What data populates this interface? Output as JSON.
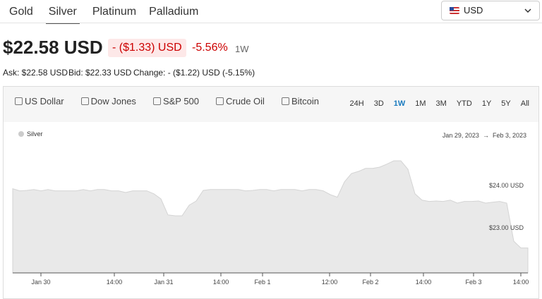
{
  "tabs": [
    "Gold",
    "Silver",
    "Platinum",
    "Palladium"
  ],
  "currency": "USD",
  "price": "$22.58 USD",
  "change": "- ($1.33) USD",
  "change_pct": "-5.56%",
  "period": "1W",
  "ask": "Ask: $22.58 USD",
  "bid": "Bid: $22.33 USD",
  "day_change": "Change: - ($1.22) USD (-5.15%)",
  "compare": [
    "US Dollar",
    "Dow Jones",
    "S&P 500",
    "Crude Oil",
    "Bitcoin"
  ],
  "ranges": [
    "24H",
    "3D",
    "1W",
    "1M",
    "3M",
    "YTD",
    "1Y",
    "5Y",
    "All"
  ],
  "date_from": "Jan 29, 2023",
  "date_separator": "→",
  "date_to": "Feb 3, 2023",
  "chart_data": {
    "type": "area",
    "series": [
      {
        "name": "Silver",
        "color": "#d4d4d4",
        "values": [
          23.92,
          23.87,
          23.88,
          23.9,
          23.87,
          23.9,
          23.87,
          23.87,
          23.87,
          23.87,
          23.9,
          23.87,
          23.9,
          23.9,
          23.87,
          23.87,
          23.83,
          23.87,
          23.87,
          23.87,
          23.8,
          23.68,
          23.3,
          23.28,
          23.28,
          23.53,
          23.63,
          23.88,
          23.9,
          23.9,
          23.9,
          23.9,
          23.9,
          23.87,
          23.88,
          23.9,
          23.9,
          23.87,
          23.9,
          23.9,
          23.9,
          23.87,
          23.9,
          23.9,
          23.87,
          23.78,
          23.72,
          24.08,
          24.28,
          24.33,
          24.4,
          24.4,
          24.43,
          24.5,
          24.58,
          24.58,
          24.38,
          23.8,
          23.65,
          23.62,
          23.63,
          23.62,
          23.65,
          23.58,
          23.62,
          23.62,
          23.63,
          23.58,
          23.6,
          23.62,
          23.58,
          22.68,
          22.52,
          22.52
        ]
      }
    ],
    "xlim": [
      0,
      73
    ],
    "xticks": [
      {
        "value": 4,
        "label": "Jan 30"
      },
      {
        "value": 14.4,
        "label": "14:00"
      },
      {
        "value": 21.4,
        "label": "Jan 31"
      },
      {
        "value": 29.5,
        "label": "14:00"
      },
      {
        "value": 35.4,
        "label": "Feb 1"
      },
      {
        "value": 44.9,
        "label": "12:00"
      },
      {
        "value": 50.7,
        "label": "Feb 2"
      },
      {
        "value": 58.2,
        "label": "14:00"
      },
      {
        "value": 65.3,
        "label": "Feb 3"
      },
      {
        "value": 72,
        "label": "14:00"
      }
    ],
    "ylim": [
      21.93,
      25.38
    ],
    "yticks": [
      {
        "value": 23,
        "label": "$23.00 USD"
      },
      {
        "value": 24,
        "label": "$24.00 USD"
      }
    ],
    "grid": false
  }
}
